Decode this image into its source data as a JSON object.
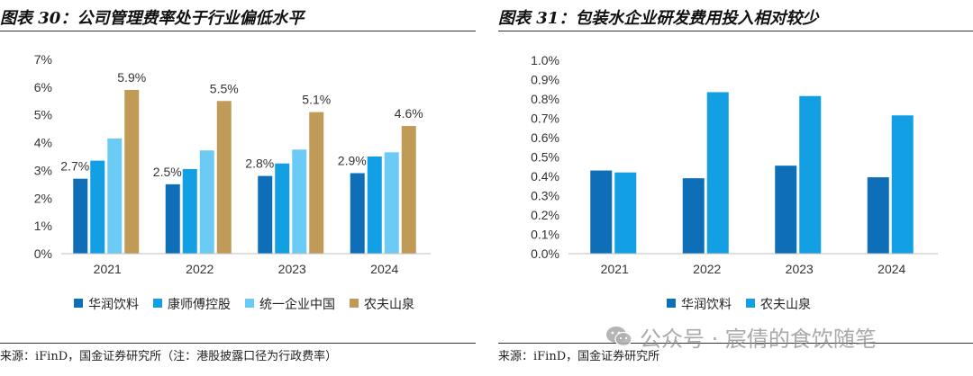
{
  "left": {
    "title": "图表 30：公司管理费率处于行业偏低水平",
    "source": "来源：iFinD，国金证券研究所（注：港股披露口径为行政费率）",
    "chart_data": {
      "type": "bar",
      "categories": [
        "2021",
        "2022",
        "2023",
        "2024"
      ],
      "y_ticks": [
        "0%",
        "1%",
        "2%",
        "3%",
        "4%",
        "5%",
        "6%",
        "7%"
      ],
      "ylim": [
        0,
        7
      ],
      "grid": false,
      "legend_position": "bottom",
      "series": [
        {
          "name": "华润饮料",
          "color": "#0E6FB8",
          "values": [
            2.7,
            2.5,
            2.8,
            2.9
          ],
          "labels": [
            "2.7%",
            "2.5%",
            "2.8%",
            "2.9%"
          ]
        },
        {
          "name": "康师傅控股",
          "color": "#139FE3",
          "values": [
            3.35,
            3.05,
            3.25,
            3.5
          ]
        },
        {
          "name": "统一企业中国",
          "color": "#6CCBF4",
          "values": [
            4.15,
            3.72,
            3.75,
            3.65
          ]
        },
        {
          "name": "农夫山泉",
          "color": "#C09A57",
          "values": [
            5.9,
            5.5,
            5.1,
            4.6
          ],
          "labels": [
            "5.9%",
            "5.5%",
            "5.1%",
            "4.6%"
          ]
        }
      ]
    }
  },
  "right": {
    "title": "图表 31：包装水企业研发费用投入相对较少",
    "source": "来源：iFinD，国金证券研究所",
    "chart_data": {
      "type": "bar",
      "categories": [
        "2021",
        "2022",
        "2023",
        "2024"
      ],
      "y_ticks": [
        "0.0%",
        "0.1%",
        "0.2%",
        "0.3%",
        "0.4%",
        "0.5%",
        "0.6%",
        "0.7%",
        "0.8%",
        "0.9%",
        "1.0%"
      ],
      "ylim": [
        0,
        1.0
      ],
      "grid": false,
      "legend_position": "bottom",
      "series": [
        {
          "name": "华润饮料",
          "color": "#0E6FB8",
          "values": [
            0.43,
            0.39,
            0.455,
            0.395
          ]
        },
        {
          "name": "农夫山泉",
          "color": "#139FE3",
          "values": [
            0.42,
            0.835,
            0.815,
            0.715
          ]
        }
      ]
    }
  },
  "watermark": {
    "text": "公众号 · 宸倩的食饮随笔",
    "icon": "wechat-icon"
  }
}
